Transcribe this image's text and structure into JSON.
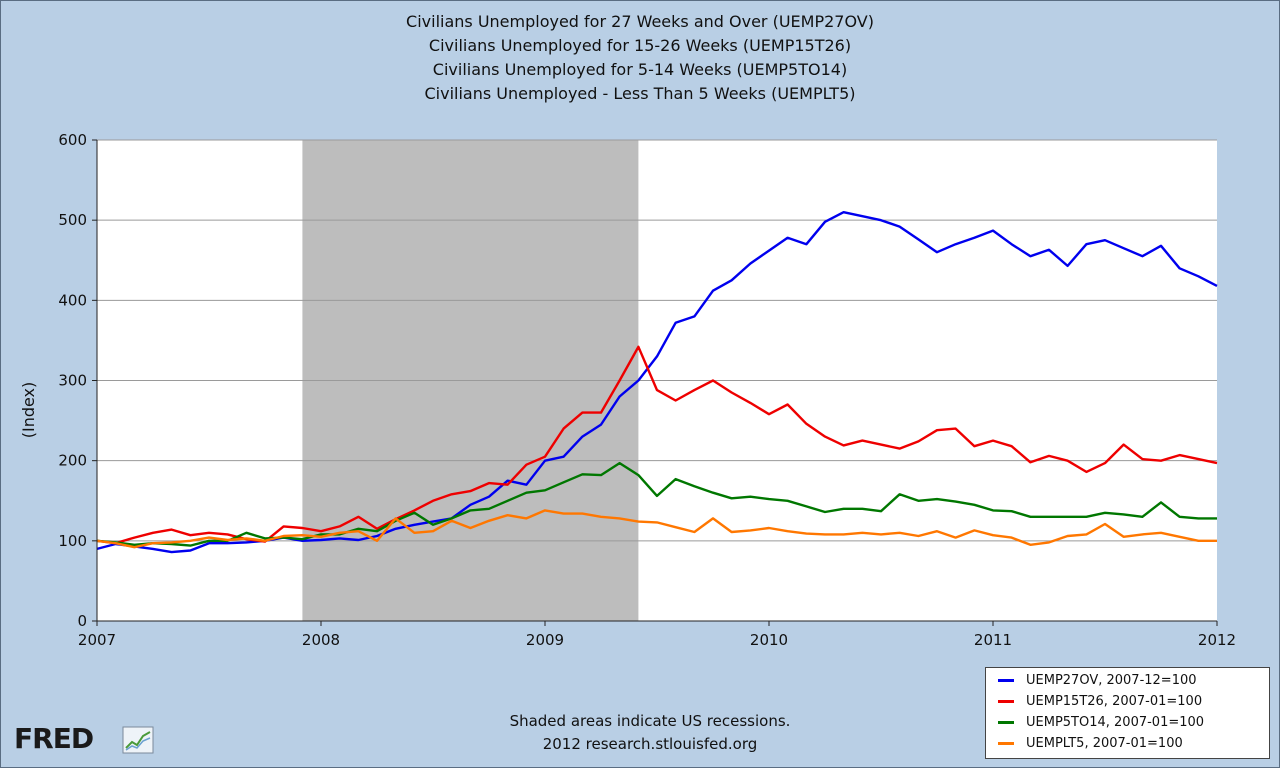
{
  "chart_data": {
    "type": "line",
    "title_lines": [
      "Civilians Unemployed for 27 Weeks and Over (UEMP27OV)",
      "Civilians Unemployed for 15-26 Weeks (UEMP15T26)",
      "Civilians Unemployed for 5-14 Weeks (UEMP5TO14)",
      "Civilians Unemployed - Less Than 5 Weeks (UEMPLT5)"
    ],
    "ylabel": "(Index)",
    "xlabel": "",
    "xlim": [
      2007,
      2012
    ],
    "ylim": [
      0,
      600
    ],
    "yticks": [
      0,
      100,
      200,
      300,
      400,
      500,
      600
    ],
    "xticks": [
      2007,
      2008,
      2009,
      2010,
      2011,
      2012
    ],
    "grid": "horizontal",
    "recession": {
      "start": 2007.917,
      "end": 2009.417,
      "color": "#bdbdbd"
    },
    "series": [
      {
        "name": "UEMP27OV, 2007-12=100",
        "color": "#0000ee",
        "x": [
          2007.0,
          2007.083,
          2007.167,
          2007.25,
          2007.333,
          2007.417,
          2007.5,
          2007.583,
          2007.667,
          2007.75,
          2007.833,
          2007.917,
          2008.0,
          2008.083,
          2008.167,
          2008.25,
          2008.333,
          2008.417,
          2008.5,
          2008.583,
          2008.667,
          2008.75,
          2008.833,
          2008.917,
          2009.0,
          2009.083,
          2009.167,
          2009.25,
          2009.333,
          2009.417,
          2009.5,
          2009.583,
          2009.667,
          2009.75,
          2009.833,
          2009.917,
          2010.0,
          2010.083,
          2010.167,
          2010.25,
          2010.333,
          2010.417,
          2010.5,
          2010.583,
          2010.667,
          2010.75,
          2010.833,
          2010.917,
          2011.0,
          2011.083,
          2011.167,
          2011.25,
          2011.333,
          2011.417,
          2011.5,
          2011.583,
          2011.667,
          2011.75,
          2011.833,
          2011.917,
          2012.0
        ],
        "y": [
          90,
          96,
          93,
          90,
          86,
          88,
          97,
          97,
          98,
          100,
          104,
          100,
          101,
          103,
          101,
          106,
          115,
          120,
          124,
          128,
          145,
          155,
          175,
          170,
          200,
          205,
          230,
          245,
          280,
          300,
          330,
          372,
          380,
          412,
          425,
          446,
          462,
          478,
          470,
          498,
          510,
          505,
          500,
          492,
          476,
          460,
          470,
          478,
          487,
          470,
          455,
          463,
          443,
          470,
          475,
          465,
          455,
          468,
          440,
          430,
          418
        ]
      },
      {
        "name": "UEMP15T26, 2007-01=100",
        "color": "#ee0000",
        "x": [
          2007.0,
          2007.083,
          2007.167,
          2007.25,
          2007.333,
          2007.417,
          2007.5,
          2007.583,
          2007.667,
          2007.75,
          2007.833,
          2007.917,
          2008.0,
          2008.083,
          2008.167,
          2008.25,
          2008.333,
          2008.417,
          2008.5,
          2008.583,
          2008.667,
          2008.75,
          2008.833,
          2008.917,
          2009.0,
          2009.083,
          2009.167,
          2009.25,
          2009.333,
          2009.417,
          2009.5,
          2009.583,
          2009.667,
          2009.75,
          2009.833,
          2009.917,
          2010.0,
          2010.083,
          2010.167,
          2010.25,
          2010.333,
          2010.417,
          2010.5,
          2010.583,
          2010.667,
          2010.75,
          2010.833,
          2010.917,
          2011.0,
          2011.083,
          2011.167,
          2011.25,
          2011.333,
          2011.417,
          2011.5,
          2011.583,
          2011.667,
          2011.75,
          2011.833,
          2011.917,
          2012.0
        ],
        "y": [
          100,
          97,
          104,
          110,
          114,
          107,
          110,
          108,
          102,
          99,
          118,
          116,
          112,
          118,
          130,
          115,
          127,
          138,
          150,
          158,
          162,
          172,
          170,
          195,
          205,
          240,
          260,
          260,
          300,
          342,
          288,
          275,
          288,
          300,
          285,
          272,
          258,
          270,
          246,
          230,
          219,
          225,
          220,
          215,
          224,
          238,
          240,
          218,
          225,
          218,
          198,
          206,
          200,
          186,
          197,
          220,
          202,
          200,
          207,
          202,
          197
        ]
      },
      {
        "name": "UEMP5TO14, 2007-01=100",
        "color": "#007700",
        "x": [
          2007.0,
          2007.083,
          2007.167,
          2007.25,
          2007.333,
          2007.417,
          2007.5,
          2007.583,
          2007.667,
          2007.75,
          2007.833,
          2007.917,
          2008.0,
          2008.083,
          2008.167,
          2008.25,
          2008.333,
          2008.417,
          2008.5,
          2008.583,
          2008.667,
          2008.75,
          2008.833,
          2008.917,
          2009.0,
          2009.083,
          2009.167,
          2009.25,
          2009.333,
          2009.417,
          2009.5,
          2009.583,
          2009.667,
          2009.75,
          2009.833,
          2009.917,
          2010.0,
          2010.083,
          2010.167,
          2010.25,
          2010.333,
          2010.417,
          2010.5,
          2010.583,
          2010.667,
          2010.75,
          2010.833,
          2010.917,
          2011.0,
          2011.083,
          2011.167,
          2011.25,
          2011.333,
          2011.417,
          2011.5,
          2011.583,
          2011.667,
          2011.75,
          2011.833,
          2011.917,
          2012.0
        ],
        "y": [
          100,
          98,
          95,
          97,
          96,
          94,
          100,
          100,
          110,
          103,
          104,
          102,
          108,
          108,
          115,
          112,
          125,
          135,
          120,
          128,
          138,
          140,
          150,
          160,
          163,
          173,
          183,
          182,
          197,
          182,
          156,
          177,
          168,
          160,
          153,
          155,
          152,
          150,
          143,
          136,
          140,
          140,
          137,
          158,
          150,
          152,
          149,
          145,
          138,
          137,
          130,
          130,
          130,
          130,
          135,
          133,
          130,
          148,
          130,
          128,
          128
        ]
      },
      {
        "name": "UEMPLT5, 2007-01=100",
        "color": "#ff7700",
        "x": [
          2007.0,
          2007.083,
          2007.167,
          2007.25,
          2007.333,
          2007.417,
          2007.5,
          2007.583,
          2007.667,
          2007.75,
          2007.833,
          2007.917,
          2008.0,
          2008.083,
          2008.167,
          2008.25,
          2008.333,
          2008.417,
          2008.5,
          2008.583,
          2008.667,
          2008.75,
          2008.833,
          2008.917,
          2009.0,
          2009.083,
          2009.167,
          2009.25,
          2009.333,
          2009.417,
          2009.5,
          2009.583,
          2009.667,
          2009.75,
          2009.833,
          2009.917,
          2010.0,
          2010.083,
          2010.167,
          2010.25,
          2010.333,
          2010.417,
          2010.5,
          2010.583,
          2010.667,
          2010.75,
          2010.833,
          2010.917,
          2011.0,
          2011.083,
          2011.167,
          2011.25,
          2011.333,
          2011.417,
          2011.5,
          2011.583,
          2011.667,
          2011.75,
          2011.833,
          2011.917,
          2012.0
        ],
        "y": [
          100,
          97,
          92,
          97,
          98,
          100,
          104,
          101,
          103,
          100,
          106,
          107,
          105,
          110,
          112,
          100,
          128,
          110,
          112,
          125,
          116,
          125,
          132,
          128,
          138,
          134,
          134,
          130,
          128,
          124,
          123,
          117,
          111,
          128,
          111,
          113,
          116,
          112,
          109,
          108,
          108,
          110,
          108,
          110,
          106,
          112,
          104,
          113,
          107,
          104,
          95,
          98,
          106,
          108,
          121,
          105,
          108,
          110,
          105,
          100,
          100
        ]
      }
    ]
  },
  "legend": [
    {
      "label": "UEMP27OV, 2007-12=100",
      "color": "#0000ee"
    },
    {
      "label": "UEMP15T26, 2007-01=100",
      "color": "#ee0000"
    },
    {
      "label": "UEMP5TO14, 2007-01=100",
      "color": "#007700"
    },
    {
      "label": "UEMPLT5, 2007-01=100",
      "color": "#ff7700"
    }
  ],
  "footer": {
    "note": "Shaded areas indicate US recessions.",
    "source": "2012 research.stlouisfed.org"
  },
  "logo": {
    "text": "FRED"
  }
}
